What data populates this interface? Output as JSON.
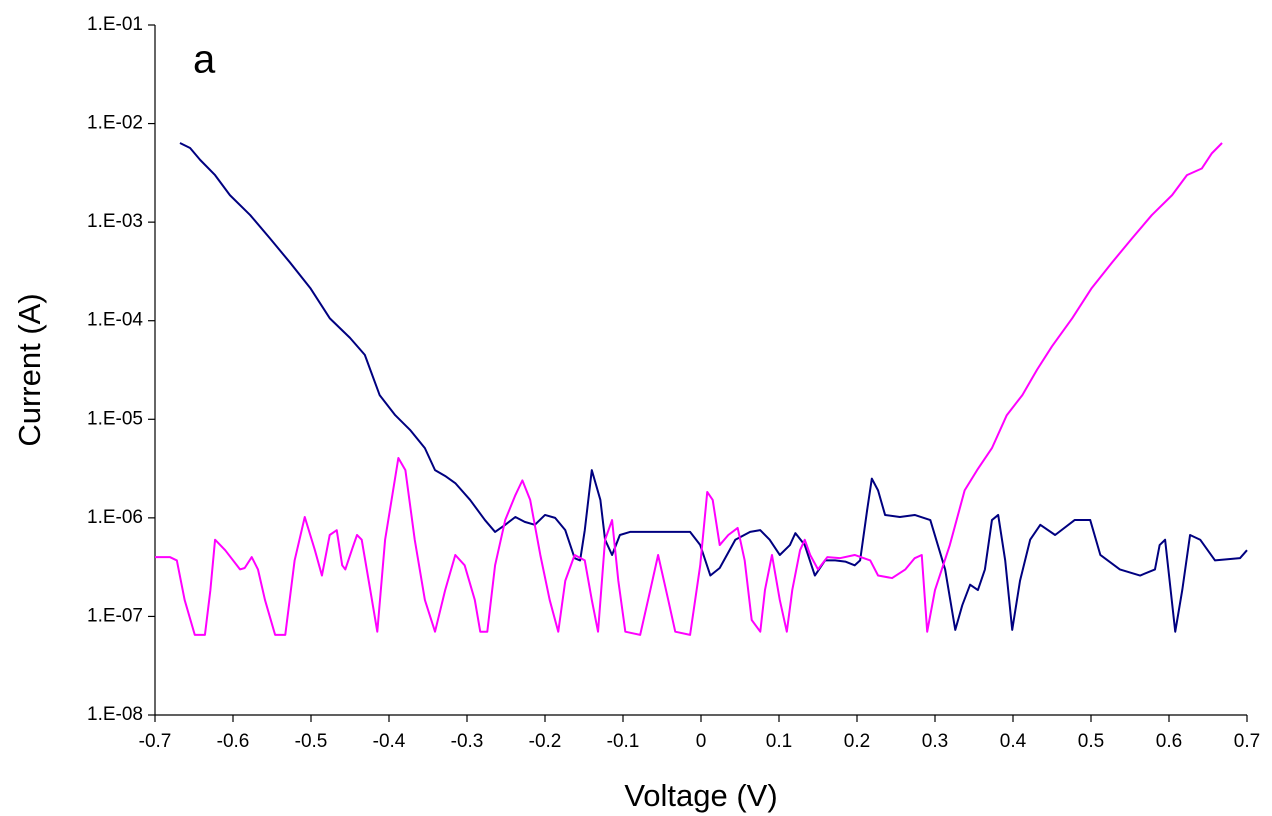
{
  "chart_data": {
    "type": "line",
    "annotation": "a",
    "x_label": "Voltage (V)",
    "y_label": "Current (A)",
    "log_y": true,
    "grid": false,
    "xlim": [
      -0.7,
      0.7
    ],
    "xticks": [
      -0.7,
      -0.6,
      -0.5,
      -0.4,
      -0.3,
      -0.2,
      -0.1,
      0,
      0.1,
      0.2,
      0.3,
      0.4,
      0.5,
      0.6,
      0.7
    ],
    "ylim": [
      1e-08,
      0.1
    ],
    "yticks": [
      {
        "value": 1e-08,
        "label": "1.E-08"
      },
      {
        "value": 1e-07,
        "label": "1.E-07"
      },
      {
        "value": 1e-06,
        "label": "1.E-06"
      },
      {
        "value": 1e-05,
        "label": "1.E-05"
      },
      {
        "value": 0.0001,
        "label": "1.E-04"
      },
      {
        "value": 0.001,
        "label": "1.E-03"
      },
      {
        "value": 0.01,
        "label": "1.E-02"
      },
      {
        "value": 0.1,
        "label": "1.E-01"
      }
    ],
    "series": [
      {
        "color": "#000080",
        "x": [
          -0.668,
          -0.655,
          -0.642,
          -0.623,
          -0.604,
          -0.578,
          -0.553,
          -0.527,
          -0.501,
          -0.476,
          -0.45,
          -0.431,
          -0.412,
          -0.392,
          -0.373,
          -0.354,
          -0.341,
          -0.328,
          -0.315,
          -0.296,
          -0.277,
          -0.264,
          -0.251,
          -0.238,
          -0.226,
          -0.213,
          -0.2,
          -0.187,
          -0.174,
          -0.162,
          -0.155,
          -0.149,
          -0.14,
          -0.129,
          -0.123,
          -0.114,
          -0.104,
          -0.091,
          -0.014,
          -0.001,
          0.012,
          0.024,
          0.044,
          0.063,
          0.076,
          0.088,
          0.101,
          0.114,
          0.121,
          0.133,
          0.146,
          0.159,
          0.172,
          0.185,
          0.197,
          0.204,
          0.213,
          0.219,
          0.227,
          0.236,
          0.255,
          0.274,
          0.294,
          0.313,
          0.326,
          0.335,
          0.345,
          0.355,
          0.364,
          0.373,
          0.381,
          0.39,
          0.399,
          0.409,
          0.422,
          0.435,
          0.454,
          0.479,
          0.499,
          0.512,
          0.537,
          0.563,
          0.582,
          0.588,
          0.595,
          0.608,
          0.617,
          0.627,
          0.64,
          0.659,
          0.691,
          0.7
        ],
        "values": [
          0.00635,
          0.00565,
          0.00427,
          0.003,
          0.00188,
          0.00118,
          0.00069,
          0.00039,
          0.000215,
          0.000106,
          6.7e-05,
          4.5e-05,
          1.76e-05,
          1.1e-05,
          7.8e-06,
          5.1e-06,
          3.05e-06,
          2.66e-06,
          2.25e-06,
          1.52e-06,
          9.5e-07,
          7.2e-07,
          8.5e-07,
          1.02e-06,
          9.1e-07,
          8.5e-07,
          1.07e-06,
          1e-06,
          7.5e-07,
          3.9e-07,
          3.7e-07,
          7.5e-07,
          3.05e-06,
          1.52e-06,
          6e-07,
          4.2e-07,
          6.7e-07,
          7.2e-07,
          7.2e-07,
          5.3e-07,
          2.6e-07,
          3.1e-07,
          6e-07,
          7.2e-07,
          7.5e-07,
          6e-07,
          4.2e-07,
          5.3e-07,
          7e-07,
          5.3e-07,
          2.6e-07,
          3.7e-07,
          3.7e-07,
          3.6e-07,
          3.3e-07,
          3.7e-07,
          1.2e-06,
          2.5e-06,
          1.9e-06,
          1.07e-06,
          1.02e-06,
          1.07e-06,
          9.5e-07,
          3e-07,
          7.3e-08,
          1.3e-07,
          2.1e-07,
          1.85e-07,
          3e-07,
          9.5e-07,
          1.07e-06,
          3.7e-07,
          7.3e-08,
          2.3e-07,
          6e-07,
          8.5e-07,
          6.7e-07,
          9.5e-07,
          9.5e-07,
          4.2e-07,
          3e-07,
          2.6e-07,
          3e-07,
          5.3e-07,
          6e-07,
          7e-08,
          1.85e-07,
          6.7e-07,
          6e-07,
          3.7e-07,
          3.9e-07,
          4.7e-07
        ]
      },
      {
        "color": "#ff00ff",
        "x": [
          -0.7,
          -0.681,
          -0.672,
          -0.662,
          -0.649,
          -0.636,
          -0.629,
          -0.623,
          -0.61,
          -0.591,
          -0.585,
          -0.576,
          -0.568,
          -0.559,
          -0.546,
          -0.533,
          -0.521,
          -0.508,
          -0.495,
          -0.486,
          -0.476,
          -0.467,
          -0.46,
          -0.456,
          -0.447,
          -0.441,
          -0.435,
          -0.424,
          -0.415,
          -0.405,
          -0.388,
          -0.379,
          -0.367,
          -0.354,
          -0.341,
          -0.328,
          -0.315,
          -0.303,
          -0.29,
          -0.283,
          -0.274,
          -0.264,
          -0.251,
          -0.238,
          -0.229,
          -0.219,
          -0.206,
          -0.194,
          -0.183,
          -0.174,
          -0.162,
          -0.149,
          -0.14,
          -0.132,
          -0.123,
          -0.114,
          -0.106,
          -0.097,
          -0.078,
          -0.065,
          -0.055,
          -0.042,
          -0.033,
          -0.014,
          -0.001,
          0.008,
          0.015,
          0.024,
          0.035,
          0.047,
          0.056,
          0.065,
          0.076,
          0.082,
          0.091,
          0.101,
          0.11,
          0.117,
          0.127,
          0.133,
          0.14,
          0.15,
          0.162,
          0.178,
          0.197,
          0.217,
          0.227,
          0.245,
          0.262,
          0.274,
          0.283,
          0.29,
          0.3,
          0.319,
          0.338,
          0.354,
          0.373,
          0.392,
          0.412,
          0.431,
          0.45,
          0.476,
          0.501,
          0.527,
          0.553,
          0.578,
          0.604,
          0.623,
          0.642,
          0.655,
          0.668
        ],
        "values": [
          4e-07,
          4e-07,
          3.7e-07,
          1.47e-07,
          6.5e-08,
          6.5e-08,
          1.85e-07,
          6e-07,
          4.7e-07,
          3e-07,
          3.1e-07,
          4e-07,
          3e-07,
          1.47e-07,
          6.5e-08,
          6.5e-08,
          3.7e-07,
          1.02e-06,
          4.7e-07,
          2.6e-07,
          6.7e-07,
          7.5e-07,
          3.3e-07,
          3e-07,
          4.9e-07,
          6.7e-07,
          6e-07,
          1.85e-07,
          7e-08,
          6e-07,
          4.05e-06,
          3.05e-06,
          6e-07,
          1.47e-07,
          7e-08,
          1.85e-07,
          4.2e-07,
          3.3e-07,
          1.47e-07,
          7e-08,
          7e-08,
          3.3e-07,
          9.5e-07,
          1.7e-06,
          2.4e-06,
          1.52e-06,
          4.2e-07,
          1.47e-07,
          7e-08,
          2.3e-07,
          4.2e-07,
          3.7e-07,
          1.47e-07,
          7e-08,
          6e-07,
          9.5e-07,
          2.3e-07,
          7e-08,
          6.5e-08,
          1.85e-07,
          4.2e-07,
          1.47e-07,
          7e-08,
          6.5e-08,
          3.3e-07,
          1.83e-06,
          1.52e-06,
          5.3e-07,
          6.7e-07,
          7.9e-07,
          3.7e-07,
          9.2e-08,
          7e-08,
          1.85e-07,
          4.2e-07,
          1.47e-07,
          7e-08,
          1.85e-07,
          4.7e-07,
          6e-07,
          4.2e-07,
          3e-07,
          4e-07,
          3.9e-07,
          4.2e-07,
          3.7e-07,
          2.6e-07,
          2.45e-07,
          3e-07,
          3.9e-07,
          4.2e-07,
          7e-08,
          1.85e-07,
          5.3e-07,
          1.9e-06,
          3.05e-06,
          5.1e-06,
          1.1e-05,
          1.76e-05,
          3.2e-05,
          5.5e-05,
          0.000106,
          0.000215,
          0.00039,
          0.00069,
          0.00118,
          0.00188,
          0.003,
          0.0035,
          0.005,
          0.00635
        ]
      }
    ]
  }
}
